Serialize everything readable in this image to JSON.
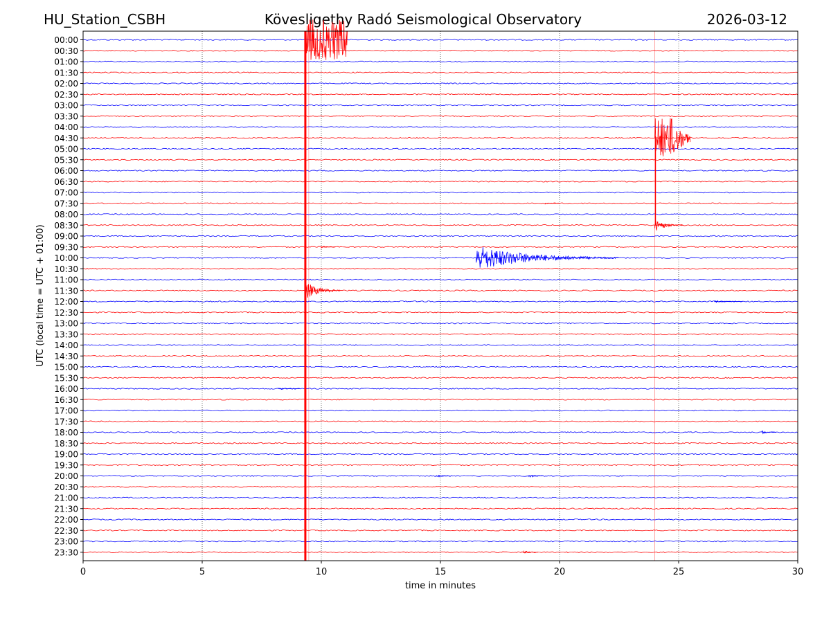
{
  "header": {
    "station": "HU_Station_CSBH",
    "title": "Kövesligethy Radó Seismological Observatory",
    "date": "2026-03-12"
  },
  "chart_data": {
    "type": "line",
    "title": "Kövesligethy Radó Seismological Observatory",
    "xlabel": "time in minutes",
    "ylabel": "UTC (local time = UTC + 01:00)",
    "xlim": [
      0,
      30
    ],
    "xticks": [
      0,
      5,
      10,
      15,
      20,
      25,
      30
    ],
    "grid_x": true,
    "colors": [
      "#0000ff",
      "#ff0000"
    ],
    "rows": [
      "00:00",
      "00:30",
      "01:00",
      "01:30",
      "02:00",
      "02:30",
      "03:00",
      "03:30",
      "04:00",
      "04:30",
      "05:00",
      "05:30",
      "06:00",
      "06:30",
      "07:00",
      "07:30",
      "08:00",
      "08:30",
      "09:00",
      "09:30",
      "10:00",
      "10:30",
      "11:00",
      "11:30",
      "12:00",
      "12:30",
      "13:00",
      "13:30",
      "14:00",
      "14:30",
      "15:00",
      "15:30",
      "16:00",
      "16:30",
      "17:00",
      "17:30",
      "18:00",
      "18:30",
      "19:00",
      "19:30",
      "20:00",
      "20:30",
      "21:00",
      "21:30",
      "22:00",
      "22:30",
      "23:00",
      "23:30"
    ],
    "events": [
      {
        "row": 0,
        "start_min": 9.3,
        "decay_min": 0.6,
        "amp_rows": 50,
        "vertical": true,
        "color": "#ff0000"
      },
      {
        "row": 20,
        "start_min": 16.5,
        "decay_min": 2.0,
        "amp_rows": 1.2,
        "color": "#0000ff"
      },
      {
        "row": 9,
        "start_min": 24.0,
        "decay_min": 0.5,
        "amp_rows": 8,
        "vertical": true,
        "color": "#ff0000"
      },
      {
        "row": 23,
        "start_min": 9.3,
        "decay_min": 0.5,
        "amp_rows": 0.9,
        "color": "#ff0000"
      },
      {
        "row": 17,
        "start_min": 24.0,
        "decay_min": 0.4,
        "amp_rows": 0.6,
        "color": "#ff0000"
      },
      {
        "row": 40,
        "start_min": 14.8,
        "decay_min": 0.2,
        "amp_rows": 0.15,
        "color": "#0000ff"
      },
      {
        "row": 40,
        "start_min": 18.7,
        "decay_min": 0.2,
        "amp_rows": 0.2,
        "color": "#0000ff"
      },
      {
        "row": 36,
        "start_min": 28.5,
        "decay_min": 0.2,
        "amp_rows": 0.15,
        "color": "#0000ff"
      },
      {
        "row": 24,
        "start_min": 26.5,
        "decay_min": 0.4,
        "amp_rows": 0.1,
        "color": "#0000ff"
      },
      {
        "row": 15,
        "start_min": 19.4,
        "decay_min": 0.2,
        "amp_rows": 0.1,
        "color": "#ff0000"
      },
      {
        "row": 47,
        "start_min": 18.5,
        "decay_min": 0.2,
        "amp_rows": 0.15,
        "color": "#ff0000"
      },
      {
        "row": 32,
        "start_min": 8.2,
        "decay_min": 0.3,
        "amp_rows": 0.1,
        "color": "#0000ff"
      },
      {
        "row": 19,
        "start_min": 10.0,
        "decay_min": 0.2,
        "amp_rows": 0.1,
        "color": "#ff0000"
      }
    ]
  }
}
